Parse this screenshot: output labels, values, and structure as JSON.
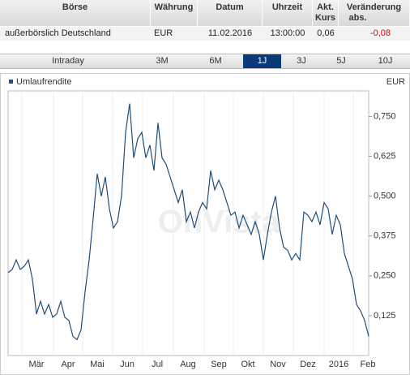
{
  "table": {
    "headers": [
      "Börse",
      "Währung",
      "Datum",
      "Uhrzeit",
      "Akt. Kurs",
      "Veränderung"
    ],
    "subheader": "abs.",
    "rows": [
      [
        "außerbörslich Deutschland",
        "EUR",
        "11.02.2016",
        "13:00:00",
        "0,06",
        "-0,08"
      ]
    ]
  },
  "tabs": {
    "items": [
      "Intraday",
      "3M",
      "6M",
      "1J",
      "3J",
      "5J",
      "10J"
    ],
    "selected": 3
  },
  "chart_data": {
    "type": "line",
    "unit": "EUR",
    "watermark": "OnVista",
    "series": [
      {
        "name": "Umlaufrendite",
        "color": "#1f4e79",
        "values": [
          0.26,
          0.27,
          0.3,
          0.27,
          0.28,
          0.3,
          0.24,
          0.13,
          0.17,
          0.13,
          0.16,
          0.12,
          0.13,
          0.17,
          0.12,
          0.11,
          0.06,
          0.05,
          0.08,
          0.2,
          0.3,
          0.43,
          0.57,
          0.5,
          0.56,
          0.46,
          0.4,
          0.42,
          0.5,
          0.7,
          0.79,
          0.62,
          0.68,
          0.7,
          0.62,
          0.66,
          0.58,
          0.73,
          0.62,
          0.6,
          0.56,
          0.52,
          0.48,
          0.52,
          0.42,
          0.45,
          0.4,
          0.45,
          0.48,
          0.46,
          0.58,
          0.52,
          0.55,
          0.52,
          0.48,
          0.44,
          0.45,
          0.4,
          0.44,
          0.41,
          0.38,
          0.42,
          0.38,
          0.3,
          0.38,
          0.45,
          0.5,
          0.4,
          0.34,
          0.33,
          0.3,
          0.32,
          0.3,
          0.45,
          0.44,
          0.42,
          0.45,
          0.41,
          0.48,
          0.46,
          0.38,
          0.44,
          0.41,
          0.32,
          0.28,
          0.24,
          0.16,
          0.14,
          0.11,
          0.06
        ]
      }
    ],
    "xlim": [
      0,
      89
    ],
    "xticks": [
      {
        "value": 7,
        "label": "Mär"
      },
      {
        "value": 14.8,
        "label": "Apr"
      },
      {
        "value": 22,
        "label": "Mai"
      },
      {
        "value": 29.4,
        "label": "Jun"
      },
      {
        "value": 36.8,
        "label": "Jul"
      },
      {
        "value": 44.4,
        "label": "Aug"
      },
      {
        "value": 52,
        "label": "Sep"
      },
      {
        "value": 59.2,
        "label": "Okt"
      },
      {
        "value": 66.6,
        "label": "Nov"
      },
      {
        "value": 74,
        "label": "Dez"
      },
      {
        "value": 81.6,
        "label": "2016"
      },
      {
        "value": 88.8,
        "label": "Feb"
      }
    ],
    "ylim": [
      0,
      0.83
    ],
    "yticks": [
      {
        "value": 0.125,
        "label": "0,125"
      },
      {
        "value": 0.25,
        "label": "0,250"
      },
      {
        "value": 0.375,
        "label": "0,375"
      },
      {
        "value": 0.5,
        "label": "0,500"
      },
      {
        "value": 0.625,
        "label": "0,625"
      },
      {
        "value": 0.75,
        "label": "0,750"
      }
    ],
    "grid": true
  }
}
